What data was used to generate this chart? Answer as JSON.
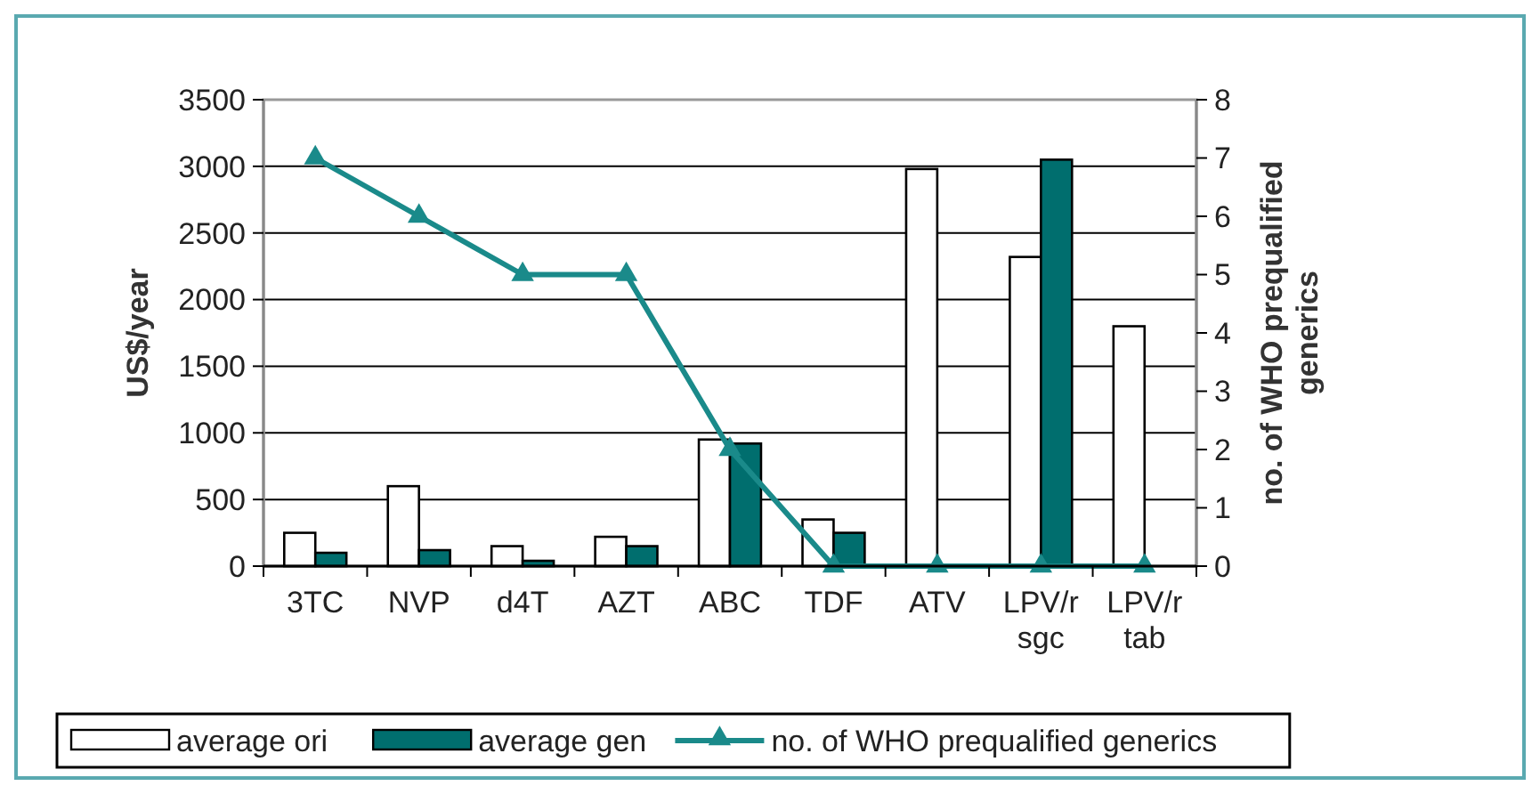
{
  "chart_data": {
    "type": "bar",
    "ylabel": "US$/year",
    "y2label": "no. of WHO prequalified generics",
    "categories": [
      "3TC",
      "NVP",
      "d4T",
      "AZT",
      "ABC",
      "TDF",
      "ATV",
      "LPV/r sgc",
      "LPV/r tab"
    ],
    "series": [
      {
        "name": "average ori",
        "color": "#ffffff",
        "values": [
          250,
          600,
          150,
          220,
          950,
          350,
          2980,
          2320,
          1800
        ]
      },
      {
        "name": "average gen",
        "color": "#006e6e",
        "values": [
          100,
          120,
          40,
          150,
          920,
          250,
          null,
          3050,
          null
        ]
      },
      {
        "name": "no. of WHO prequalified generics",
        "type": "line",
        "axis": "y2",
        "color": "#1a8a8a",
        "marker": "triangle",
        "values": [
          7,
          6,
          5,
          5,
          2,
          0,
          0,
          0,
          0
        ]
      }
    ],
    "ylim": [
      0,
      3500
    ],
    "yticks": [
      0,
      500,
      1000,
      1500,
      2000,
      2500,
      3000,
      3500
    ],
    "y2lim": [
      0,
      8
    ],
    "y2ticks": [
      0,
      1,
      2,
      3,
      4,
      5,
      6,
      7,
      8
    ],
    "grid": "y",
    "legend": "bottom"
  }
}
